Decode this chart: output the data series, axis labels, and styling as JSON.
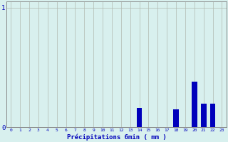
{
  "categories": [
    0,
    1,
    2,
    3,
    4,
    5,
    6,
    7,
    8,
    9,
    10,
    11,
    12,
    13,
    14,
    15,
    16,
    17,
    18,
    19,
    20,
    21,
    22,
    23
  ],
  "values": [
    0,
    0,
    0,
    0,
    0,
    0,
    0,
    0,
    0,
    0,
    0,
    0,
    0,
    0,
    0.16,
    0,
    0,
    0,
    0.15,
    0,
    0.38,
    0.2,
    0.2,
    0
  ],
  "bar_color": "#0000bb",
  "background_color": "#d8f0ee",
  "grid_color": "#b0b8b0",
  "axis_color": "#888888",
  "text_color": "#0000bb",
  "xlabel": "Précipitations 6min ( mm )",
  "ylim": [
    0,
    1.05
  ],
  "ytick_positions": [
    0,
    1
  ],
  "ytick_labels": [
    "0",
    "1"
  ],
  "xlim": [
    -0.5,
    23.5
  ]
}
